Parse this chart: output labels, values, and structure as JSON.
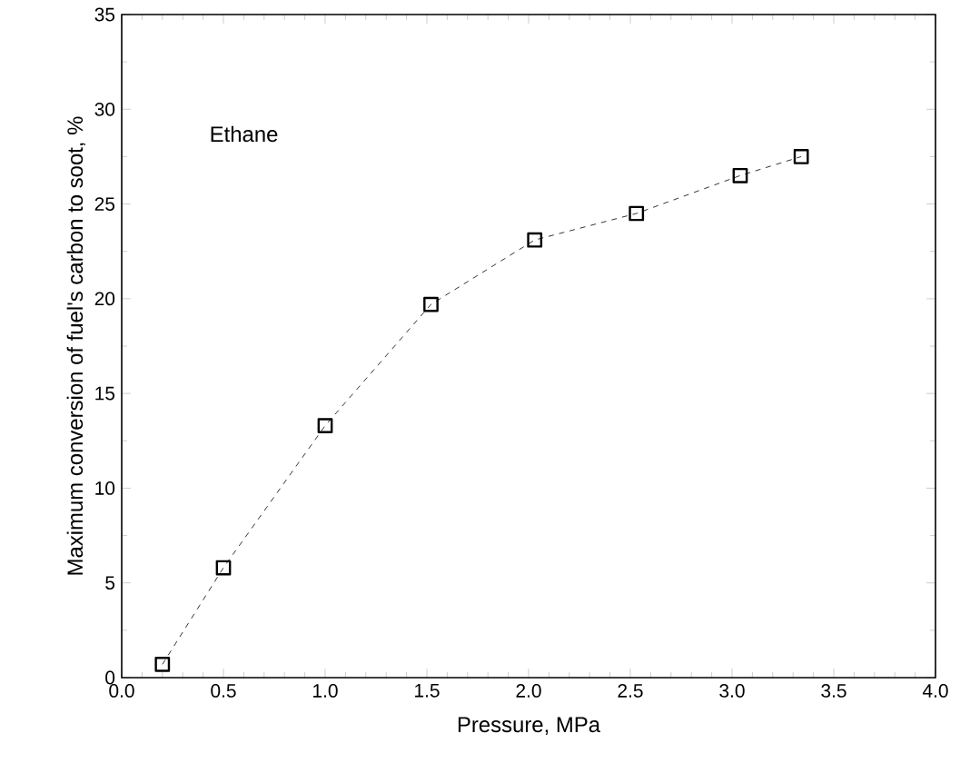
{
  "chart_data": {
    "type": "line",
    "xlabel": "Pressure, MPa",
    "ylabel": "Maximum conversion of fuel's carbon to soot, %",
    "annotations": [
      "Ethane"
    ],
    "x": [
      0.2,
      0.5,
      1.0,
      1.52,
      2.03,
      2.53,
      3.04,
      3.34
    ],
    "series": [
      {
        "color": "#000000",
        "values": [
          0.7,
          5.8,
          13.3,
          19.7,
          23.1,
          24.5,
          26.5,
          27.5
        ]
      }
    ],
    "xlim": [
      0,
      4
    ],
    "xticks": [
      {
        "value": 0,
        "label": "0.0"
      },
      {
        "value": 0.5,
        "label": "0.5"
      },
      {
        "value": 1,
        "label": "1.0"
      },
      {
        "value": 1.5,
        "label": "1.5"
      },
      {
        "value": 2,
        "label": "2.0"
      },
      {
        "value": 2.5,
        "label": "2.5"
      },
      {
        "value": 3,
        "label": "3.0"
      },
      {
        "value": 3.5,
        "label": "3.5"
      },
      {
        "value": 4,
        "label": "4.0"
      }
    ],
    "ylim": [
      0,
      35
    ],
    "yticks": [
      0,
      5,
      10,
      15,
      20,
      25,
      30,
      35
    ],
    "marker": "square",
    "line_style": "dashed"
  }
}
